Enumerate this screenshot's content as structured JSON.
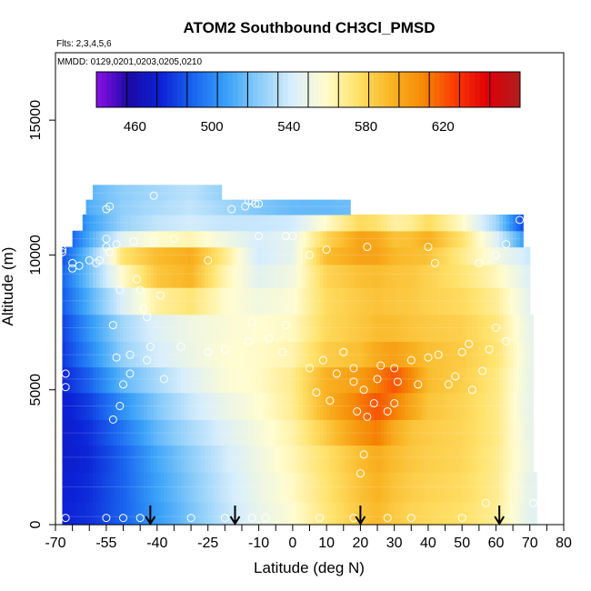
{
  "chart_data": {
    "type": "heatmap",
    "title": "ATOM2 Southbound CH3Cl_PMSD",
    "flights_label": "Flts: 2,3,4,5,6",
    "dates_label": "MMDD: 0129,0201,0203,0205,0210",
    "xlabel": "Latitude (deg N)",
    "ylabel": "Altitude (m)",
    "xlim": [
      -70,
      80
    ],
    "ylim": [
      0,
      17500
    ],
    "x_ticks": [
      -70,
      -55,
      -40,
      -25,
      -10,
      0,
      10,
      20,
      30,
      40,
      50,
      60,
      70,
      80
    ],
    "y_ticks": [
      0,
      5000,
      10000,
      15000
    ],
    "colorbar": {
      "placement": "top-inside",
      "range": [
        440,
        660
      ],
      "ticks": [
        460,
        500,
        540,
        580,
        620
      ],
      "colors": [
        "#8b10e8",
        "#1a0aa6",
        "#0c22d6",
        "#1a66f0",
        "#3aa2f8",
        "#8ccdfa",
        "#d8eefc",
        "#fffcd0",
        "#ffe26a",
        "#f9b625",
        "#f58a06",
        "#fc3a03",
        "#e00008",
        "#ae1e1e"
      ]
    },
    "color_field": {
      "x_stops": [
        -68,
        -60,
        -50,
        -40,
        -30,
        -20,
        -10,
        0,
        10,
        20,
        25,
        30,
        35,
        40,
        50,
        60,
        70
      ],
      "y_stops": [
        0,
        2500,
        4000,
        5000,
        6000,
        7500,
        9000,
        10000,
        11000,
        12000
      ],
      "values": [
        [
          474,
          478,
          490,
          505,
          520,
          535,
          548,
          557,
          572,
          585,
          590,
          584,
          580,
          578,
          575,
          568,
          545
        ],
        [
          470,
          475,
          490,
          510,
          525,
          540,
          552,
          563,
          576,
          590,
          596,
          590,
          586,
          583,
          580,
          570,
          550
        ],
        [
          470,
          478,
          498,
          520,
          535,
          546,
          556,
          566,
          590,
          615,
          622,
          600,
          588,
          585,
          580,
          572,
          548
        ],
        [
          472,
          485,
          510,
          525,
          542,
          555,
          560,
          572,
          600,
          610,
          618,
          630,
          615,
          590,
          582,
          570,
          548
        ],
        [
          478,
          498,
          525,
          540,
          550,
          558,
          560,
          565,
          585,
          590,
          600,
          605,
          598,
          590,
          585,
          575,
          550
        ],
        [
          482,
          505,
          530,
          545,
          552,
          556,
          558,
          560,
          578,
          585,
          588,
          587,
          585,
          584,
          582,
          572,
          548
        ],
        [
          492,
          520,
          555,
          585,
          592,
          562,
          548,
          554,
          578,
          585,
          587,
          585,
          585,
          580,
          575,
          565,
          545
        ],
        [
          485,
          520,
          575,
          590,
          596,
          570,
          540,
          548,
          590,
          600,
          600,
          592,
          590,
          588,
          570,
          553,
          538
        ],
        [
          475,
          505,
          528,
          538,
          542,
          540,
          543,
          548,
          574,
          600,
          596,
          585,
          588,
          600,
          578,
          540,
          470
        ],
        [
          496,
          515,
          525,
          530,
          535,
          526,
          516,
          508,
          500,
          495,
          492,
          490,
          490,
          490,
          488,
          486,
          480
        ]
      ]
    },
    "flight_tracks": [
      {
        "altitude": 300,
        "lat": [
          -68,
          72
        ]
      },
      {
        "altitude": 1400,
        "lat": [
          -68,
          72
        ]
      },
      {
        "altitude": 2500,
        "lat": [
          -68,
          71
        ]
      },
      {
        "altitude": 3400,
        "lat": [
          -68,
          71
        ]
      },
      {
        "altitude": 4400,
        "lat": [
          -68,
          71
        ]
      },
      {
        "altitude": 5400,
        "lat": [
          -68,
          71
        ]
      },
      {
        "altitude": 6300,
        "lat": [
          -68,
          71
        ]
      },
      {
        "altitude": 7300,
        "lat": [
          -68,
          71
        ]
      },
      {
        "altitude": 8300,
        "lat": [
          -68,
          70
        ]
      },
      {
        "altitude": 9300,
        "lat": [
          -68,
          70
        ]
      },
      {
        "altitude": 10000,
        "lat": [
          -68,
          70
        ]
      },
      {
        "altitude": 10600,
        "lat": [
          -65,
          68
        ]
      },
      {
        "altitude": 11200,
        "lat": [
          -62,
          68
        ]
      },
      {
        "altitude": 11800,
        "lat": [
          -61,
          17
        ]
      },
      {
        "altitude": 12300,
        "lat": [
          -59,
          -21
        ]
      }
    ],
    "sample_points": [
      [
        -67,
        250
      ],
      [
        -55,
        250
      ],
      [
        -50,
        250
      ],
      [
        -45,
        250
      ],
      [
        -30,
        250
      ],
      [
        -20,
        250
      ],
      [
        -12,
        250
      ],
      [
        -8,
        250
      ],
      [
        8,
        250
      ],
      [
        18,
        250
      ],
      [
        28,
        250
      ],
      [
        35,
        250
      ],
      [
        50,
        250
      ],
      [
        57,
        800
      ],
      [
        71,
        800
      ],
      [
        -53,
        3900
      ],
      [
        -51,
        4400
      ],
      [
        -50,
        5200
      ],
      [
        -48,
        5600
      ],
      [
        -52,
        6200
      ],
      [
        -48,
        6300
      ],
      [
        -43,
        6100
      ],
      [
        -42,
        6600
      ],
      [
        -38,
        5400
      ],
      [
        -33,
        6600
      ],
      [
        -25,
        6400
      ],
      [
        -20,
        6500
      ],
      [
        -13,
        6800
      ],
      [
        -7,
        6900
      ],
      [
        -3,
        6400
      ],
      [
        -12,
        7500
      ],
      [
        -2,
        7400
      ],
      [
        5,
        5800
      ],
      [
        9,
        6100
      ],
      [
        13,
        5600
      ],
      [
        15,
        6400
      ],
      [
        18,
        5300
      ],
      [
        18,
        5800
      ],
      [
        21,
        5000
      ],
      [
        25,
        5400
      ],
      [
        26,
        5900
      ],
      [
        24,
        4500
      ],
      [
        28,
        4200
      ],
      [
        30,
        4500
      ],
      [
        30,
        5800
      ],
      [
        31,
        5300
      ],
      [
        35,
        6100
      ],
      [
        37,
        5200
      ],
      [
        40,
        6200
      ],
      [
        43,
        6300
      ],
      [
        46,
        5200
      ],
      [
        48,
        5500
      ],
      [
        50,
        6400
      ],
      [
        52,
        6700
      ],
      [
        53,
        5000
      ],
      [
        56,
        5700
      ],
      [
        58,
        6500
      ],
      [
        60,
        7300
      ],
      [
        63,
        6800
      ],
      [
        7,
        4900
      ],
      [
        11,
        4600
      ],
      [
        19,
        4200
      ],
      [
        21,
        2600
      ],
      [
        20,
        1900
      ],
      [
        22,
        4000
      ],
      [
        -67,
        5600
      ],
      [
        -67,
        5100
      ],
      [
        -53,
        7400
      ],
      [
        -51,
        8700
      ],
      [
        -46,
        9100
      ],
      [
        -44,
        8000
      ],
      [
        -43,
        7700
      ],
      [
        -39,
        8500
      ],
      [
        -45,
        8700
      ],
      [
        -63,
        9600
      ],
      [
        -65,
        9700
      ],
      [
        -60,
        9800
      ],
      [
        -57,
        9800
      ],
      [
        -54,
        10100
      ],
      [
        -52,
        10400
      ],
      [
        -47,
        10500
      ],
      [
        -41,
        10500
      ],
      [
        -35,
        10600
      ],
      [
        -25,
        9800
      ],
      [
        -10,
        10700
      ],
      [
        -2,
        10700
      ],
      [
        0,
        10700
      ],
      [
        5,
        10000
      ],
      [
        10,
        10200
      ],
      [
        -55,
        10300
      ],
      [
        -55,
        10600
      ],
      [
        -55,
        11700
      ],
      [
        -54,
        11800
      ],
      [
        -41,
        12200
      ],
      [
        -18,
        11700
      ],
      [
        -14,
        11800
      ],
      [
        -13,
        12000
      ],
      [
        -12,
        12000
      ],
      [
        -11,
        11900
      ],
      [
        -10,
        11900
      ],
      [
        63,
        10400
      ],
      [
        67,
        11300
      ],
      [
        71,
        11200
      ],
      [
        22,
        10300
      ],
      [
        40,
        10300
      ],
      [
        42,
        9700
      ],
      [
        55,
        9700
      ],
      [
        60,
        10000
      ],
      [
        -68,
        10100
      ],
      [
        -68,
        10200
      ],
      [
        -65,
        9500
      ],
      [
        -58,
        9700
      ]
    ],
    "markers": [
      {
        "lat": -42,
        "label": "down-arrow"
      },
      {
        "lat": -17,
        "label": "down-arrow"
      },
      {
        "lat": 20,
        "label": "down-arrow"
      },
      {
        "lat": 61,
        "label": "down-arrow"
      }
    ]
  }
}
